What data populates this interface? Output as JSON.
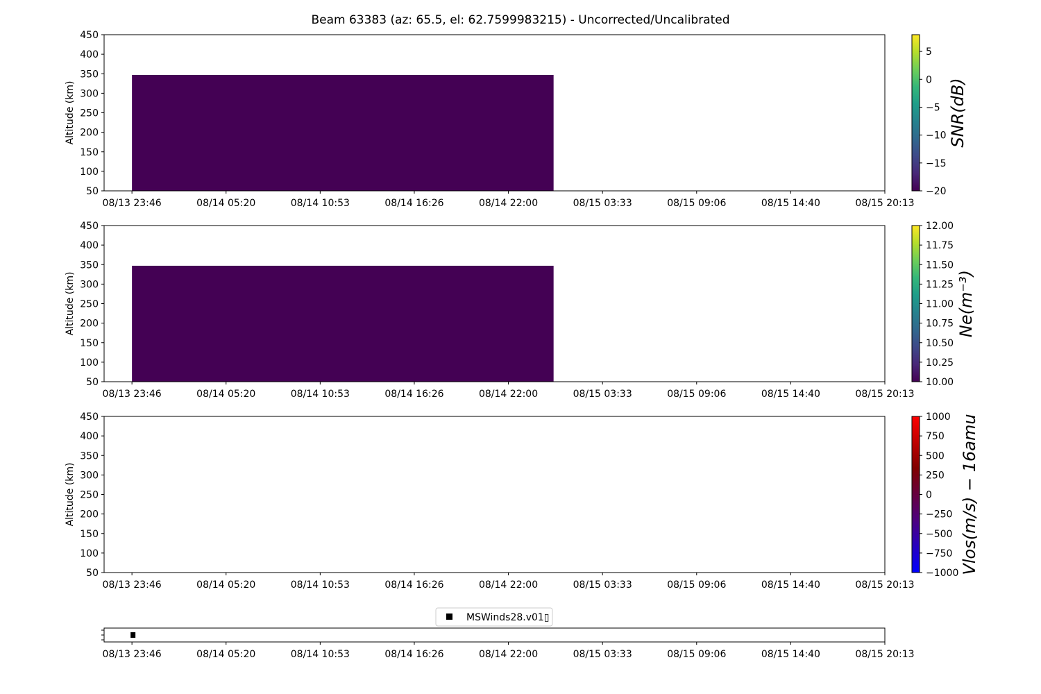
{
  "figure": {
    "title": "Beam 63383 (az: 65.5, el: 62.7599983215) - Uncorrected/Uncalibrated"
  },
  "time_ticks": [
    "08/13 23:46",
    "08/14 05:20",
    "08/14 10:53",
    "08/14 16:26",
    "08/14 22:00",
    "08/15 03:33",
    "08/15 09:06",
    "08/15 14:40",
    "08/15 20:13"
  ],
  "legend": {
    "label": "MSWinds28.v01▯"
  },
  "colors": {
    "fill": "#440154",
    "viridis": [
      "#440154",
      "#482878",
      "#3e4989",
      "#31688e",
      "#26828e",
      "#1f9e89",
      "#35b779",
      "#6ece58",
      "#b5de2b",
      "#fde725"
    ],
    "vlos": [
      "#0000ff",
      "#4d0080",
      "#800000",
      "#ff0000"
    ]
  },
  "chart_data": [
    {
      "type": "heatmap",
      "panel": "snr",
      "ylabel": "Altitude (km)",
      "ylim": [
        50,
        450
      ],
      "yticks": [
        50,
        100,
        150,
        200,
        250,
        300,
        350,
        400,
        450
      ],
      "time_fraction_range": [
        -0.037,
        1.0
      ],
      "filled_region": {
        "t_start": 0.0,
        "t_end": 0.56,
        "alt_min": 50,
        "alt_max": 347
      },
      "colorbar": {
        "label": "SNR(dB)",
        "range": [
          -20,
          8
        ],
        "ticks": [
          -20,
          -15,
          -10,
          -5,
          0,
          5
        ],
        "tick_labels": [
          "−20",
          "−15",
          "−10",
          "−5",
          "0",
          "5"
        ],
        "colormap": "viridis"
      }
    },
    {
      "type": "heatmap",
      "panel": "ne",
      "ylabel": "Altitude (km)",
      "ylim": [
        50,
        450
      ],
      "yticks": [
        50,
        100,
        150,
        200,
        250,
        300,
        350,
        400,
        450
      ],
      "time_fraction_range": [
        -0.037,
        1.0
      ],
      "filled_region": {
        "t_start": 0.0,
        "t_end": 0.56,
        "alt_min": 50,
        "alt_max": 347
      },
      "colorbar": {
        "label": "Ne(m⁻³)",
        "range": [
          10,
          12
        ],
        "ticks": [
          10,
          10.25,
          10.5,
          10.75,
          11,
          11.25,
          11.5,
          11.75,
          12
        ],
        "tick_labels": [
          "10.00",
          "10.25",
          "10.50",
          "10.75",
          "11.00",
          "11.25",
          "11.50",
          "11.75",
          "12.00"
        ],
        "colormap": "viridis"
      }
    },
    {
      "type": "heatmap",
      "panel": "vlos",
      "ylabel": "Altitude (km)",
      "ylim": [
        50,
        450
      ],
      "yticks": [
        50,
        100,
        150,
        200,
        250,
        300,
        350,
        400,
        450
      ],
      "time_fraction_range": [
        -0.037,
        1.0
      ],
      "filled_region": null,
      "colorbar": {
        "label": "Vlos(m/s) − 16amu",
        "range": [
          -1000,
          1000
        ],
        "ticks": [
          -1000,
          -750,
          -500,
          -250,
          0,
          250,
          500,
          750,
          1000
        ],
        "tick_labels": [
          "−1000",
          "−750",
          "−500",
          "−250",
          "0",
          "250",
          "500",
          "750",
          "1000"
        ],
        "colormap": "vlos"
      }
    },
    {
      "type": "scatter",
      "panel": "legend-strip",
      "series": [
        {
          "name": "MSWinds28.v01▯",
          "x": [
            0.0
          ],
          "marker": "square"
        }
      ]
    }
  ]
}
